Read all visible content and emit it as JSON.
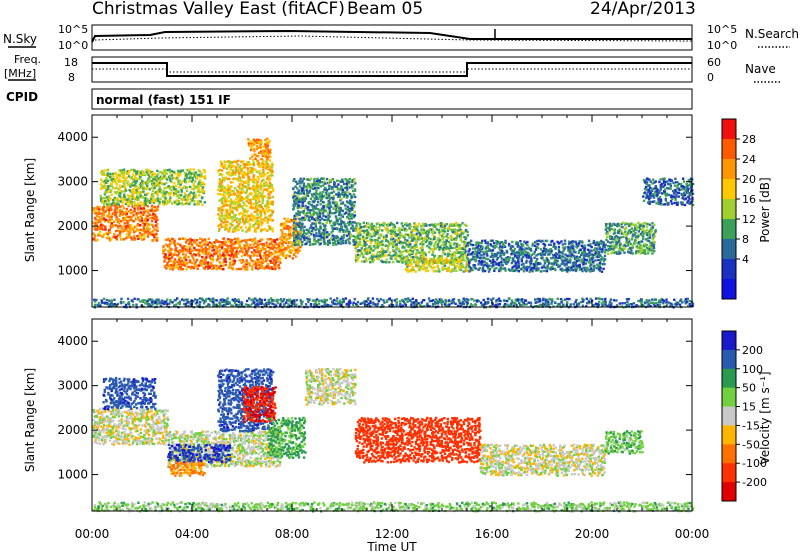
{
  "header": {
    "title": "Christmas Valley East (fitACF)",
    "beam": "Beam 05",
    "date": "24/Apr/2013"
  },
  "params": {
    "nsky_label": "N.Sky",
    "nsearch_label": "N.Search",
    "count_ticks": [
      "10^5",
      "10^0"
    ],
    "freq_label": "Freq.",
    "freq_unit": "[MHz]",
    "freq_ticks": [
      "18",
      "8"
    ],
    "nave_label": "Nave",
    "nave_ticks": [
      "60",
      "0"
    ],
    "cpid_label": "CPID",
    "cpid_value": "normal (fast) 151 IF"
  },
  "axes": {
    "x_label": "Time UT",
    "x_ticks": [
      "00:00",
      "04:00",
      "08:00",
      "12:00",
      "16:00",
      "20:00",
      "00:00"
    ],
    "y_label": "Slant Range [km]",
    "y_ticks": [
      "1000",
      "2000",
      "3000",
      "4000"
    ]
  },
  "colorbars": {
    "power": {
      "label": "Power [dB]",
      "ticks": [
        "28",
        "24",
        "20",
        "16",
        "12",
        "8",
        "4"
      ],
      "colors": [
        "#f01010",
        "#ff5a00",
        "#ff9600",
        "#ffc800",
        "#a0d030",
        "#3aa05a",
        "#2a6a9a",
        "#1a30c0",
        "#1010e0"
      ]
    },
    "velocity": {
      "label": "Velocity [m s⁻¹]",
      "ticks": [
        "200",
        "100",
        "50",
        "15",
        "-15",
        "-50",
        "-100",
        "-200"
      ],
      "colors": [
        "#1a1acc",
        "#2a5ab0",
        "#2a9a50",
        "#70d040",
        "#c8c8c8",
        "#ffb400",
        "#ff7000",
        "#ff3000",
        "#e00000"
      ]
    }
  },
  "chart_data": [
    {
      "type": "heatmap",
      "panel": "power",
      "x_range_hours": [
        0,
        24
      ],
      "ylim": [
        180,
        4500
      ],
      "features": [
        {
          "t0": 0.0,
          "t1": 2.6,
          "r0": 1700,
          "r1": 2500,
          "power": 24
        },
        {
          "t0": 0.3,
          "t1": 4.5,
          "r0": 2500,
          "r1": 3300,
          "power": 14
        },
        {
          "t0": 2.8,
          "t1": 7.5,
          "r0": 1050,
          "r1": 1750,
          "power": 24
        },
        {
          "t0": 5.0,
          "t1": 7.2,
          "r0": 1900,
          "r1": 3500,
          "power": 18
        },
        {
          "t0": 6.2,
          "t1": 7.1,
          "r0": 3500,
          "r1": 4000,
          "power": 22
        },
        {
          "t0": 7.5,
          "t1": 8.3,
          "r0": 1300,
          "r1": 2200,
          "power": 22
        },
        {
          "t0": 8.0,
          "t1": 10.5,
          "r0": 1600,
          "r1": 3100,
          "power": 8
        },
        {
          "t0": 10.5,
          "t1": 15.0,
          "r0": 1200,
          "r1": 2100,
          "power": 12
        },
        {
          "t0": 12.5,
          "t1": 15.0,
          "r0": 1000,
          "r1": 1300,
          "power": 16
        },
        {
          "t0": 15.0,
          "t1": 20.5,
          "r0": 1000,
          "r1": 1700,
          "power": 6
        },
        {
          "t0": 20.5,
          "t1": 22.5,
          "r0": 1400,
          "r1": 2100,
          "power": 10
        },
        {
          "t0": 22.0,
          "t1": 24.0,
          "r0": 2500,
          "r1": 3100,
          "power": 5
        },
        {
          "t0": 0.0,
          "t1": 24.0,
          "r0": 200,
          "r1": 400,
          "power": 6
        }
      ]
    },
    {
      "type": "heatmap",
      "panel": "velocity",
      "x_range_hours": [
        0,
        24
      ],
      "ylim": [
        180,
        4500
      ],
      "features": [
        {
          "t0": 0.0,
          "t1": 3.0,
          "r0": 1700,
          "r1": 2500,
          "velocity": 0
        },
        {
          "t0": 0.4,
          "t1": 2.5,
          "r0": 2500,
          "r1": 3200,
          "velocity": 180
        },
        {
          "t0": 3.0,
          "t1": 7.5,
          "r0": 1200,
          "r1": 2000,
          "velocity": 5
        },
        {
          "t0": 3.0,
          "t1": 5.5,
          "r0": 1300,
          "r1": 1700,
          "velocity": 200
        },
        {
          "t0": 3.0,
          "t1": 4.5,
          "r0": 1000,
          "r1": 1300,
          "velocity": -60
        },
        {
          "t0": 5.0,
          "t1": 7.2,
          "r0": 2000,
          "r1": 3400,
          "velocity": 180
        },
        {
          "t0": 6.0,
          "t1": 7.3,
          "r0": 2200,
          "r1": 3000,
          "velocity": -200
        },
        {
          "t0": 7.0,
          "t1": 8.5,
          "r0": 1400,
          "r1": 2300,
          "velocity": 60
        },
        {
          "t0": 8.5,
          "t1": 10.5,
          "r0": 2600,
          "r1": 3400,
          "velocity": 0
        },
        {
          "t0": 10.5,
          "t1": 15.5,
          "r0": 1300,
          "r1": 2300,
          "velocity": -150
        },
        {
          "t0": 15.5,
          "t1": 20.5,
          "r0": 1000,
          "r1": 1700,
          "velocity": 0
        },
        {
          "t0": 20.5,
          "t1": 22.0,
          "r0": 1500,
          "r1": 2000,
          "velocity": 40
        },
        {
          "t0": 0.0,
          "t1": 24.0,
          "r0": 200,
          "r1": 400,
          "velocity": 30
        }
      ]
    }
  ]
}
